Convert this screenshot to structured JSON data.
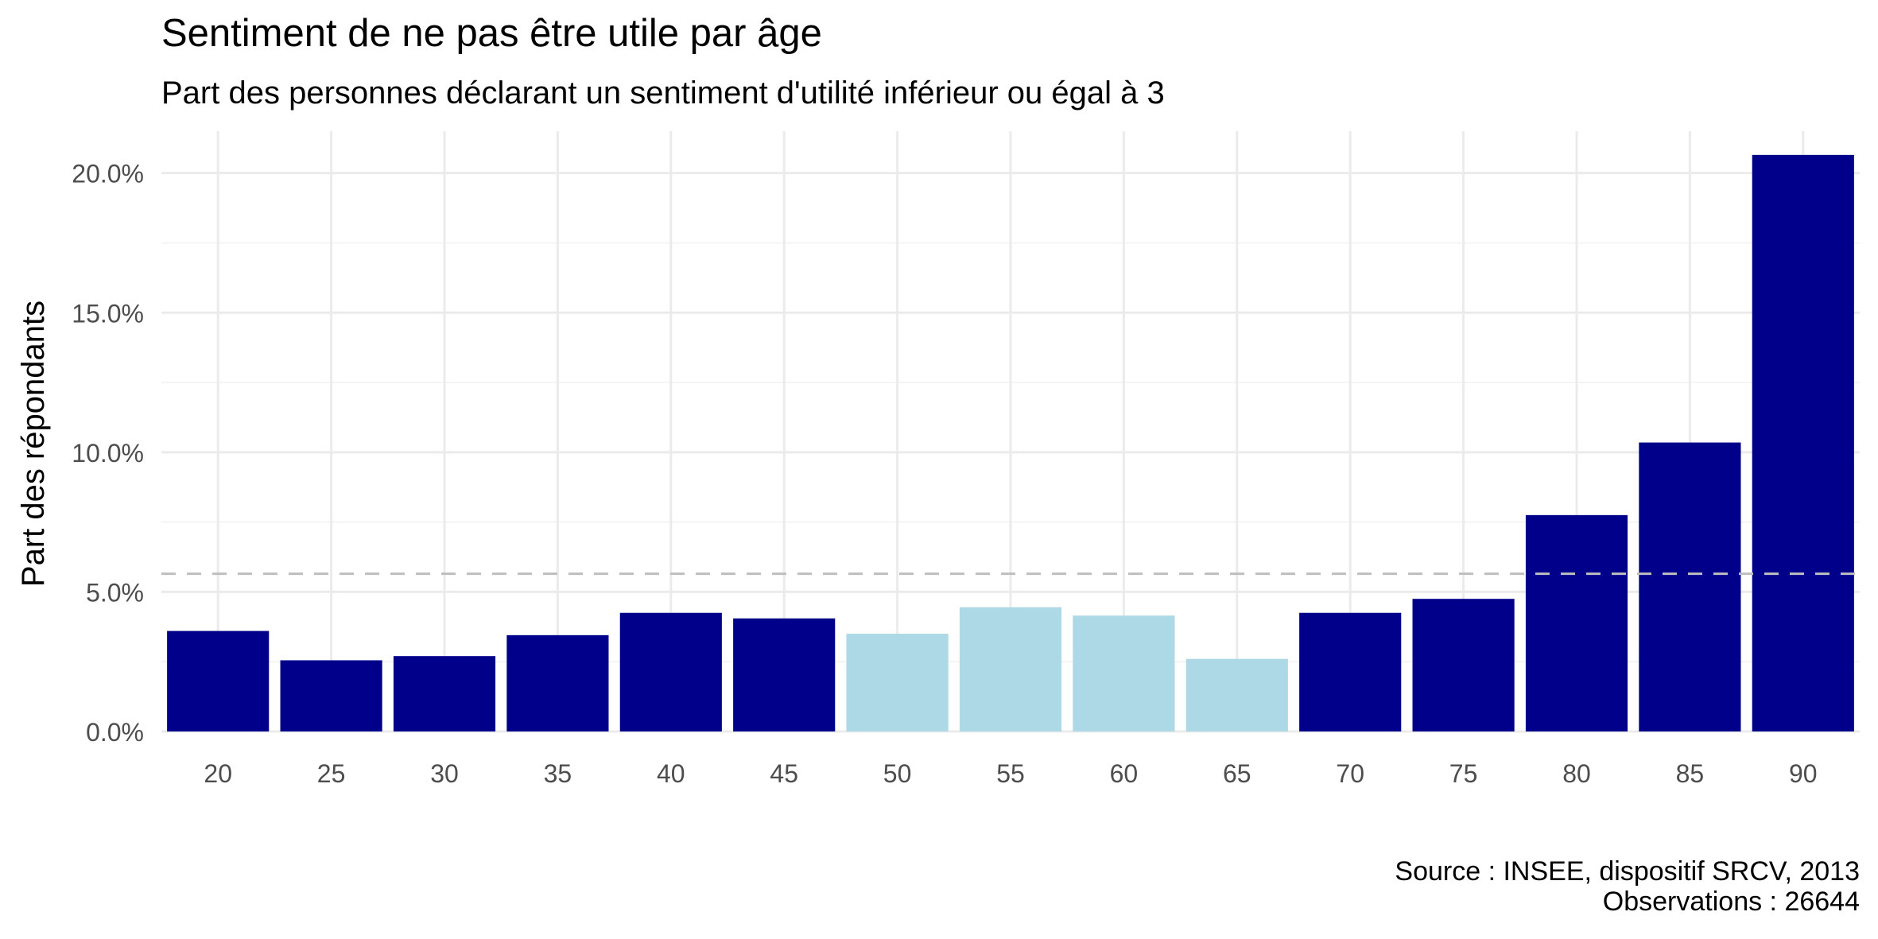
{
  "chart_data": {
    "type": "bar",
    "title": "Sentiment de ne pas être utile par âge",
    "subtitle": "Part des personnes déclarant un sentiment d'utilité inférieur ou égal à 3",
    "xlabel": "",
    "ylabel": "Part des répondants",
    "categories": [
      "20",
      "25",
      "30",
      "35",
      "40",
      "45",
      "50",
      "55",
      "60",
      "65",
      "70",
      "75",
      "80",
      "85",
      "90"
    ],
    "values": [
      3.6,
      2.55,
      2.7,
      3.45,
      4.25,
      4.05,
      3.5,
      4.45,
      4.15,
      2.6,
      4.25,
      4.75,
      7.75,
      10.35,
      20.65
    ],
    "highlight_categories": [
      "50",
      "55",
      "60",
      "65"
    ],
    "ylim": [
      0,
      21.5
    ],
    "yticks": [
      0,
      5,
      10,
      15,
      20
    ],
    "ytick_labels": [
      "0.0%",
      "5.0%",
      "10.0%",
      "15.0%",
      "20.0%"
    ],
    "reference_line": {
      "value": 5.65,
      "style": "dashed"
    },
    "grid": true,
    "legend": "none",
    "caption": [
      "Source : INSEE, dispositif SRCV, 2013",
      "Observations : 26644"
    ],
    "colors": {
      "bar": "#00008b",
      "bar_highlight": "#add8e6",
      "reference_line": "#bebebe",
      "grid_major": "#ebebeb",
      "grid_minor": "#f4f4f4"
    }
  }
}
